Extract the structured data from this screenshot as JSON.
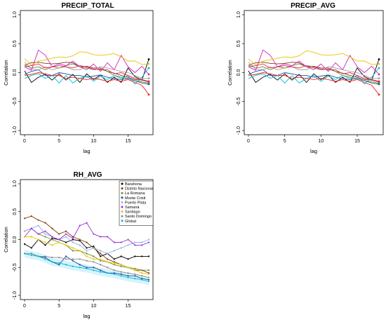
{
  "chart_data": [
    {
      "type": "line",
      "title": "PRECIP_TOTAL",
      "xlabel": "lag",
      "ylabel": "Correlation",
      "xlim": [
        0,
        18
      ],
      "ylim": [
        -1,
        1
      ],
      "xticks": [
        "0",
        "5",
        "10",
        "15"
      ],
      "yticks": [
        "-1.0",
        "-0.5",
        "0.0",
        "0.5",
        "1.0"
      ],
      "series": [
        {
          "color": "#000000",
          "values": [
            0.03,
            -0.17,
            -0.08,
            -0.03,
            -0.13,
            -0.02,
            -0.13,
            -0.03,
            -0.17,
            -0.02,
            -0.12,
            -0.04,
            -0.17,
            -0.08,
            -0.17,
            0.08,
            -0.07,
            -0.13,
            0.23
          ]
        },
        {
          "color": "#7f3b08",
          "values": [
            0.13,
            0.17,
            0.18,
            0.16,
            0.15,
            0.16,
            0.18,
            0.17,
            0.1,
            0.11,
            0.08,
            0.08,
            0.02,
            -0.01,
            -0.05,
            -0.08,
            -0.12,
            -0.13,
            -0.16
          ]
        },
        {
          "color": "#6b8e23",
          "values": [
            0.13,
            0.08,
            0.1,
            0.05,
            0.1,
            0.08,
            0.12,
            0.15,
            0.1,
            0.08,
            0.05,
            0.06,
            0.02,
            -0.05,
            -0.08,
            -0.1,
            -0.14,
            -0.16,
            -0.18
          ]
        },
        {
          "color": "#1f4e9e",
          "values": [
            -0.03,
            0.02,
            0.05,
            -0.05,
            -0.05,
            0.0,
            -0.02,
            -0.05,
            -0.05,
            -0.08,
            -0.06,
            -0.04,
            -0.08,
            -0.1,
            -0.12,
            -0.1,
            -0.14,
            -0.18,
            -0.2
          ]
        },
        {
          "color": "#00bcd4",
          "values": [
            -0.1,
            -0.05,
            -0.02,
            -0.1,
            -0.05,
            -0.18,
            -0.05,
            -0.18,
            -0.1,
            -0.05,
            -0.15,
            -0.06,
            -0.12,
            -0.05,
            -0.1,
            -0.05,
            -0.2,
            -0.08,
            0.08
          ]
        },
        {
          "color": "#d61fc4",
          "values": [
            0.1,
            0.04,
            0.39,
            0.3,
            0.1,
            0.15,
            0.12,
            0.2,
            0.1,
            0.05,
            0.15,
            0.02,
            0.17,
            0.05,
            0.3,
            0.1,
            0.0,
            0.11,
            -0.03
          ]
        },
        {
          "color": "#e8c300",
          "values": [
            0.24,
            0.13,
            0.2,
            0.22,
            0.25,
            0.27,
            0.26,
            0.29,
            0.36,
            0.35,
            0.31,
            0.3,
            0.31,
            0.33,
            0.27,
            0.2,
            0.2,
            0.14,
            0.15
          ]
        },
        {
          "color": "#9e9e9e",
          "values": [
            0.18,
            0.06,
            0.05,
            0.1,
            0.05,
            0.08,
            0.1,
            0.05,
            0.05,
            0.1,
            0.05,
            0.1,
            0.08,
            0.05,
            0.02,
            0.0,
            -0.05,
            -0.1,
            -0.1
          ]
        },
        {
          "color": "#e91e63",
          "values": [
            0.1,
            0.12,
            0.15,
            0.08,
            0.1,
            0.12,
            0.1,
            0.08,
            0.12,
            0.1,
            0.06,
            0.05,
            0.05,
            -0.02,
            0.0,
            -0.05,
            -0.1,
            -0.12,
            -0.15
          ]
        },
        {
          "color": "#ff1a1a",
          "values": [
            -0.05,
            -0.03,
            0.0,
            -0.02,
            -0.05,
            -0.05,
            -0.1,
            -0.08,
            -0.1,
            -0.12,
            -0.1,
            -0.12,
            -0.15,
            -0.12,
            -0.15,
            -0.12,
            -0.17,
            -0.22,
            -0.38
          ]
        }
      ]
    },
    {
      "type": "line",
      "title": "PRECIP_AVG",
      "xlabel": "lag",
      "ylabel": "Correlation",
      "xlim": [
        0,
        18
      ],
      "ylim": [
        -1,
        1
      ],
      "xticks": [
        "0",
        "5",
        "10",
        "15"
      ],
      "yticks": [
        "-1.0",
        "-0.5",
        "0.0",
        "0.5",
        "1.0"
      ],
      "series": [
        {
          "color": "#000000",
          "values": [
            0.03,
            -0.17,
            -0.08,
            -0.03,
            -0.13,
            -0.02,
            -0.13,
            -0.03,
            -0.17,
            -0.02,
            -0.12,
            -0.04,
            -0.17,
            -0.08,
            -0.17,
            0.08,
            -0.07,
            -0.13,
            0.23
          ]
        },
        {
          "color": "#7f3b08",
          "values": [
            0.13,
            0.17,
            0.18,
            0.16,
            0.15,
            0.16,
            0.18,
            0.17,
            0.1,
            0.11,
            0.08,
            0.08,
            0.02,
            -0.01,
            -0.05,
            -0.08,
            -0.12,
            -0.13,
            -0.16
          ]
        },
        {
          "color": "#6b8e23",
          "values": [
            0.13,
            0.08,
            0.1,
            0.05,
            0.1,
            0.08,
            0.12,
            0.15,
            0.1,
            0.08,
            0.05,
            0.06,
            0.02,
            -0.05,
            -0.08,
            -0.1,
            -0.14,
            -0.16,
            -0.18
          ]
        },
        {
          "color": "#1f4e9e",
          "values": [
            -0.03,
            0.02,
            0.05,
            -0.05,
            -0.05,
            0.0,
            -0.02,
            -0.05,
            -0.05,
            -0.08,
            -0.06,
            -0.04,
            -0.08,
            -0.1,
            -0.12,
            -0.1,
            -0.14,
            -0.18,
            -0.2
          ]
        },
        {
          "color": "#00bcd4",
          "values": [
            -0.1,
            -0.05,
            -0.02,
            -0.1,
            -0.05,
            -0.18,
            -0.05,
            -0.18,
            -0.1,
            -0.05,
            -0.15,
            -0.06,
            -0.12,
            -0.05,
            -0.1,
            -0.05,
            -0.2,
            -0.08,
            0.08
          ]
        },
        {
          "color": "#d61fc4",
          "values": [
            0.1,
            0.04,
            0.39,
            0.3,
            0.1,
            0.15,
            0.12,
            0.2,
            0.1,
            0.05,
            0.15,
            0.02,
            0.17,
            0.05,
            0.3,
            0.1,
            0.0,
            0.11,
            -0.03
          ]
        },
        {
          "color": "#e8c300",
          "values": [
            0.24,
            0.13,
            0.2,
            0.22,
            0.25,
            0.27,
            0.26,
            0.29,
            0.38,
            0.35,
            0.31,
            0.3,
            0.31,
            0.33,
            0.27,
            0.2,
            0.2,
            0.14,
            0.15
          ]
        },
        {
          "color": "#9e9e9e",
          "values": [
            0.18,
            0.06,
            0.05,
            0.1,
            0.05,
            0.08,
            0.1,
            0.05,
            0.05,
            0.1,
            0.05,
            0.1,
            0.08,
            0.05,
            0.02,
            0.0,
            -0.05,
            -0.1,
            -0.1
          ]
        },
        {
          "color": "#e91e63",
          "values": [
            0.1,
            0.12,
            0.15,
            0.08,
            0.1,
            0.12,
            0.1,
            0.08,
            0.12,
            0.1,
            0.06,
            0.05,
            0.05,
            -0.02,
            0.0,
            -0.05,
            -0.1,
            -0.12,
            -0.15
          ]
        },
        {
          "color": "#ff1a1a",
          "values": [
            -0.05,
            -0.03,
            0.0,
            -0.02,
            -0.05,
            -0.05,
            -0.1,
            -0.08,
            -0.1,
            -0.12,
            -0.1,
            -0.12,
            -0.15,
            -0.12,
            -0.15,
            -0.12,
            -0.17,
            -0.22,
            -0.38
          ]
        }
      ]
    },
    {
      "type": "line",
      "title": "RH_AVG",
      "xlabel": "lag",
      "ylabel": "Correlation",
      "xlim": [
        0,
        18
      ],
      "ylim": [
        -1,
        1
      ],
      "xticks": [
        "0",
        "5",
        "10",
        "15"
      ],
      "yticks": [
        "-1.0",
        "-0.5",
        "0.0",
        "0.5",
        "1.0"
      ],
      "legend_position": "top-right",
      "series": [
        {
          "name": "Barahona",
          "color": "#000000",
          "values": [
            -0.08,
            -0.15,
            0.0,
            -0.1,
            0.02,
            0.0,
            -0.05,
            0.0,
            -0.02,
            -0.15,
            -0.12,
            -0.3,
            -0.25,
            -0.35,
            -0.3,
            -0.35,
            -0.3,
            -0.3,
            -0.3
          ]
        },
        {
          "name": "Distrito Nacional",
          "color": "#7f3b08",
          "values": [
            0.38,
            0.42,
            0.35,
            0.3,
            0.2,
            0.1,
            0.15,
            0.05,
            0.0,
            -0.05,
            -0.15,
            -0.25,
            -0.35,
            -0.4,
            -0.45,
            -0.5,
            -0.55,
            -0.55,
            -0.6
          ]
        },
        {
          "name": "La Romana",
          "color": "#6b8e23",
          "values": [
            0.15,
            0.2,
            0.1,
            0.05,
            0.0,
            -0.05,
            -0.1,
            -0.2,
            -0.2,
            -0.25,
            -0.3,
            -0.38,
            -0.4,
            -0.45,
            -0.48,
            -0.5,
            -0.52,
            -0.55,
            -0.55
          ]
        },
        {
          "name": "Monte Cristi",
          "color": "#1f4e9e",
          "values": [
            -0.25,
            -0.25,
            -0.3,
            -0.32,
            -0.4,
            -0.45,
            -0.3,
            -0.38,
            -0.45,
            -0.5,
            -0.5,
            -0.55,
            -0.6,
            -0.6,
            -0.62,
            -0.65,
            -0.65,
            -0.7,
            -0.72
          ]
        },
        {
          "name": "Puerto Plata",
          "color": "#8fb4e8",
          "values": [
            0.15,
            0.2,
            0.25,
            0.1,
            0.05,
            0.0,
            0.05,
            -0.05,
            -0.1,
            -0.2,
            -0.15,
            -0.2,
            -0.25,
            -0.2,
            -0.15,
            -0.1,
            -0.05,
            -0.05,
            0.0
          ]
        },
        {
          "name": "Samaná",
          "color": "#9b30d9",
          "values": [
            0.05,
            0.2,
            0.1,
            0.15,
            0.05,
            0.0,
            0.1,
            0.02,
            0.25,
            0.3,
            0.1,
            0.05,
            0.05,
            -0.05,
            -0.05,
            0.0,
            -0.1,
            -0.1,
            -0.05
          ]
        },
        {
          "name": "Santiago",
          "color": "#e8c300",
          "values": [
            0.05,
            0.05,
            0.0,
            -0.05,
            -0.1,
            -0.05,
            -0.1,
            -0.15,
            -0.2,
            -0.3,
            -0.35,
            -0.35,
            -0.4,
            -0.42,
            -0.45,
            -0.5,
            -0.55,
            -0.6,
            -0.62
          ]
        },
        {
          "name": "Santo Domingo",
          "color": "#8a8a8a",
          "values": [
            -0.25,
            -0.25,
            -0.3,
            -0.3,
            -0.32,
            -0.32,
            -0.35,
            -0.35,
            -0.35,
            -0.38,
            -0.4,
            -0.45,
            -0.5,
            -0.55,
            -0.58,
            -0.6,
            -0.62,
            -0.65,
            -0.68
          ]
        },
        {
          "name": "Global",
          "color": "#00bcd4",
          "values": [
            -0.25,
            -0.28,
            -0.3,
            -0.35,
            -0.4,
            -0.42,
            -0.45,
            -0.48,
            -0.5,
            -0.52,
            -0.55,
            -0.58,
            -0.6,
            -0.62,
            -0.65,
            -0.68,
            -0.7,
            -0.72,
            -0.75
          ]
        }
      ]
    }
  ]
}
